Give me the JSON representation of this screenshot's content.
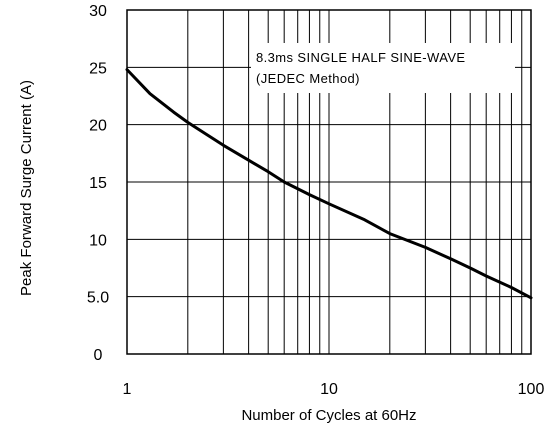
{
  "chart_data": {
    "type": "line",
    "xlabel": "Number of Cycles at 60Hz",
    "ylabel": "Peak Forward Surge Current (A)",
    "x_scale": "log",
    "xlim": [
      1,
      100
    ],
    "ylim": [
      0,
      30
    ],
    "x_ticks": [
      1,
      10,
      100
    ],
    "x_tick_labels": [
      "1",
      "10",
      "100"
    ],
    "y_ticks": [
      0,
      5,
      10,
      15,
      20,
      25,
      30
    ],
    "y_tick_labels": [
      "0",
      "5.0",
      "10",
      "15",
      "20",
      "25",
      "30"
    ],
    "grid": true,
    "annotation": [
      "8.3ms SINGLE HALF SINE-WAVE",
      "(JEDEC Method)"
    ],
    "series": [
      {
        "x": [
          1,
          1.3,
          1.7,
          2,
          2.5,
          3,
          4,
          5,
          6,
          8,
          10,
          15,
          20,
          30,
          40,
          50,
          60,
          80,
          100
        ],
        "y": [
          24.8,
          22.7,
          21.1,
          20.2,
          19.1,
          18.2,
          16.9,
          15.9,
          15.0,
          13.9,
          13.1,
          11.7,
          10.5,
          9.3,
          8.3,
          7.5,
          6.8,
          5.8,
          4.9
        ]
      }
    ]
  }
}
